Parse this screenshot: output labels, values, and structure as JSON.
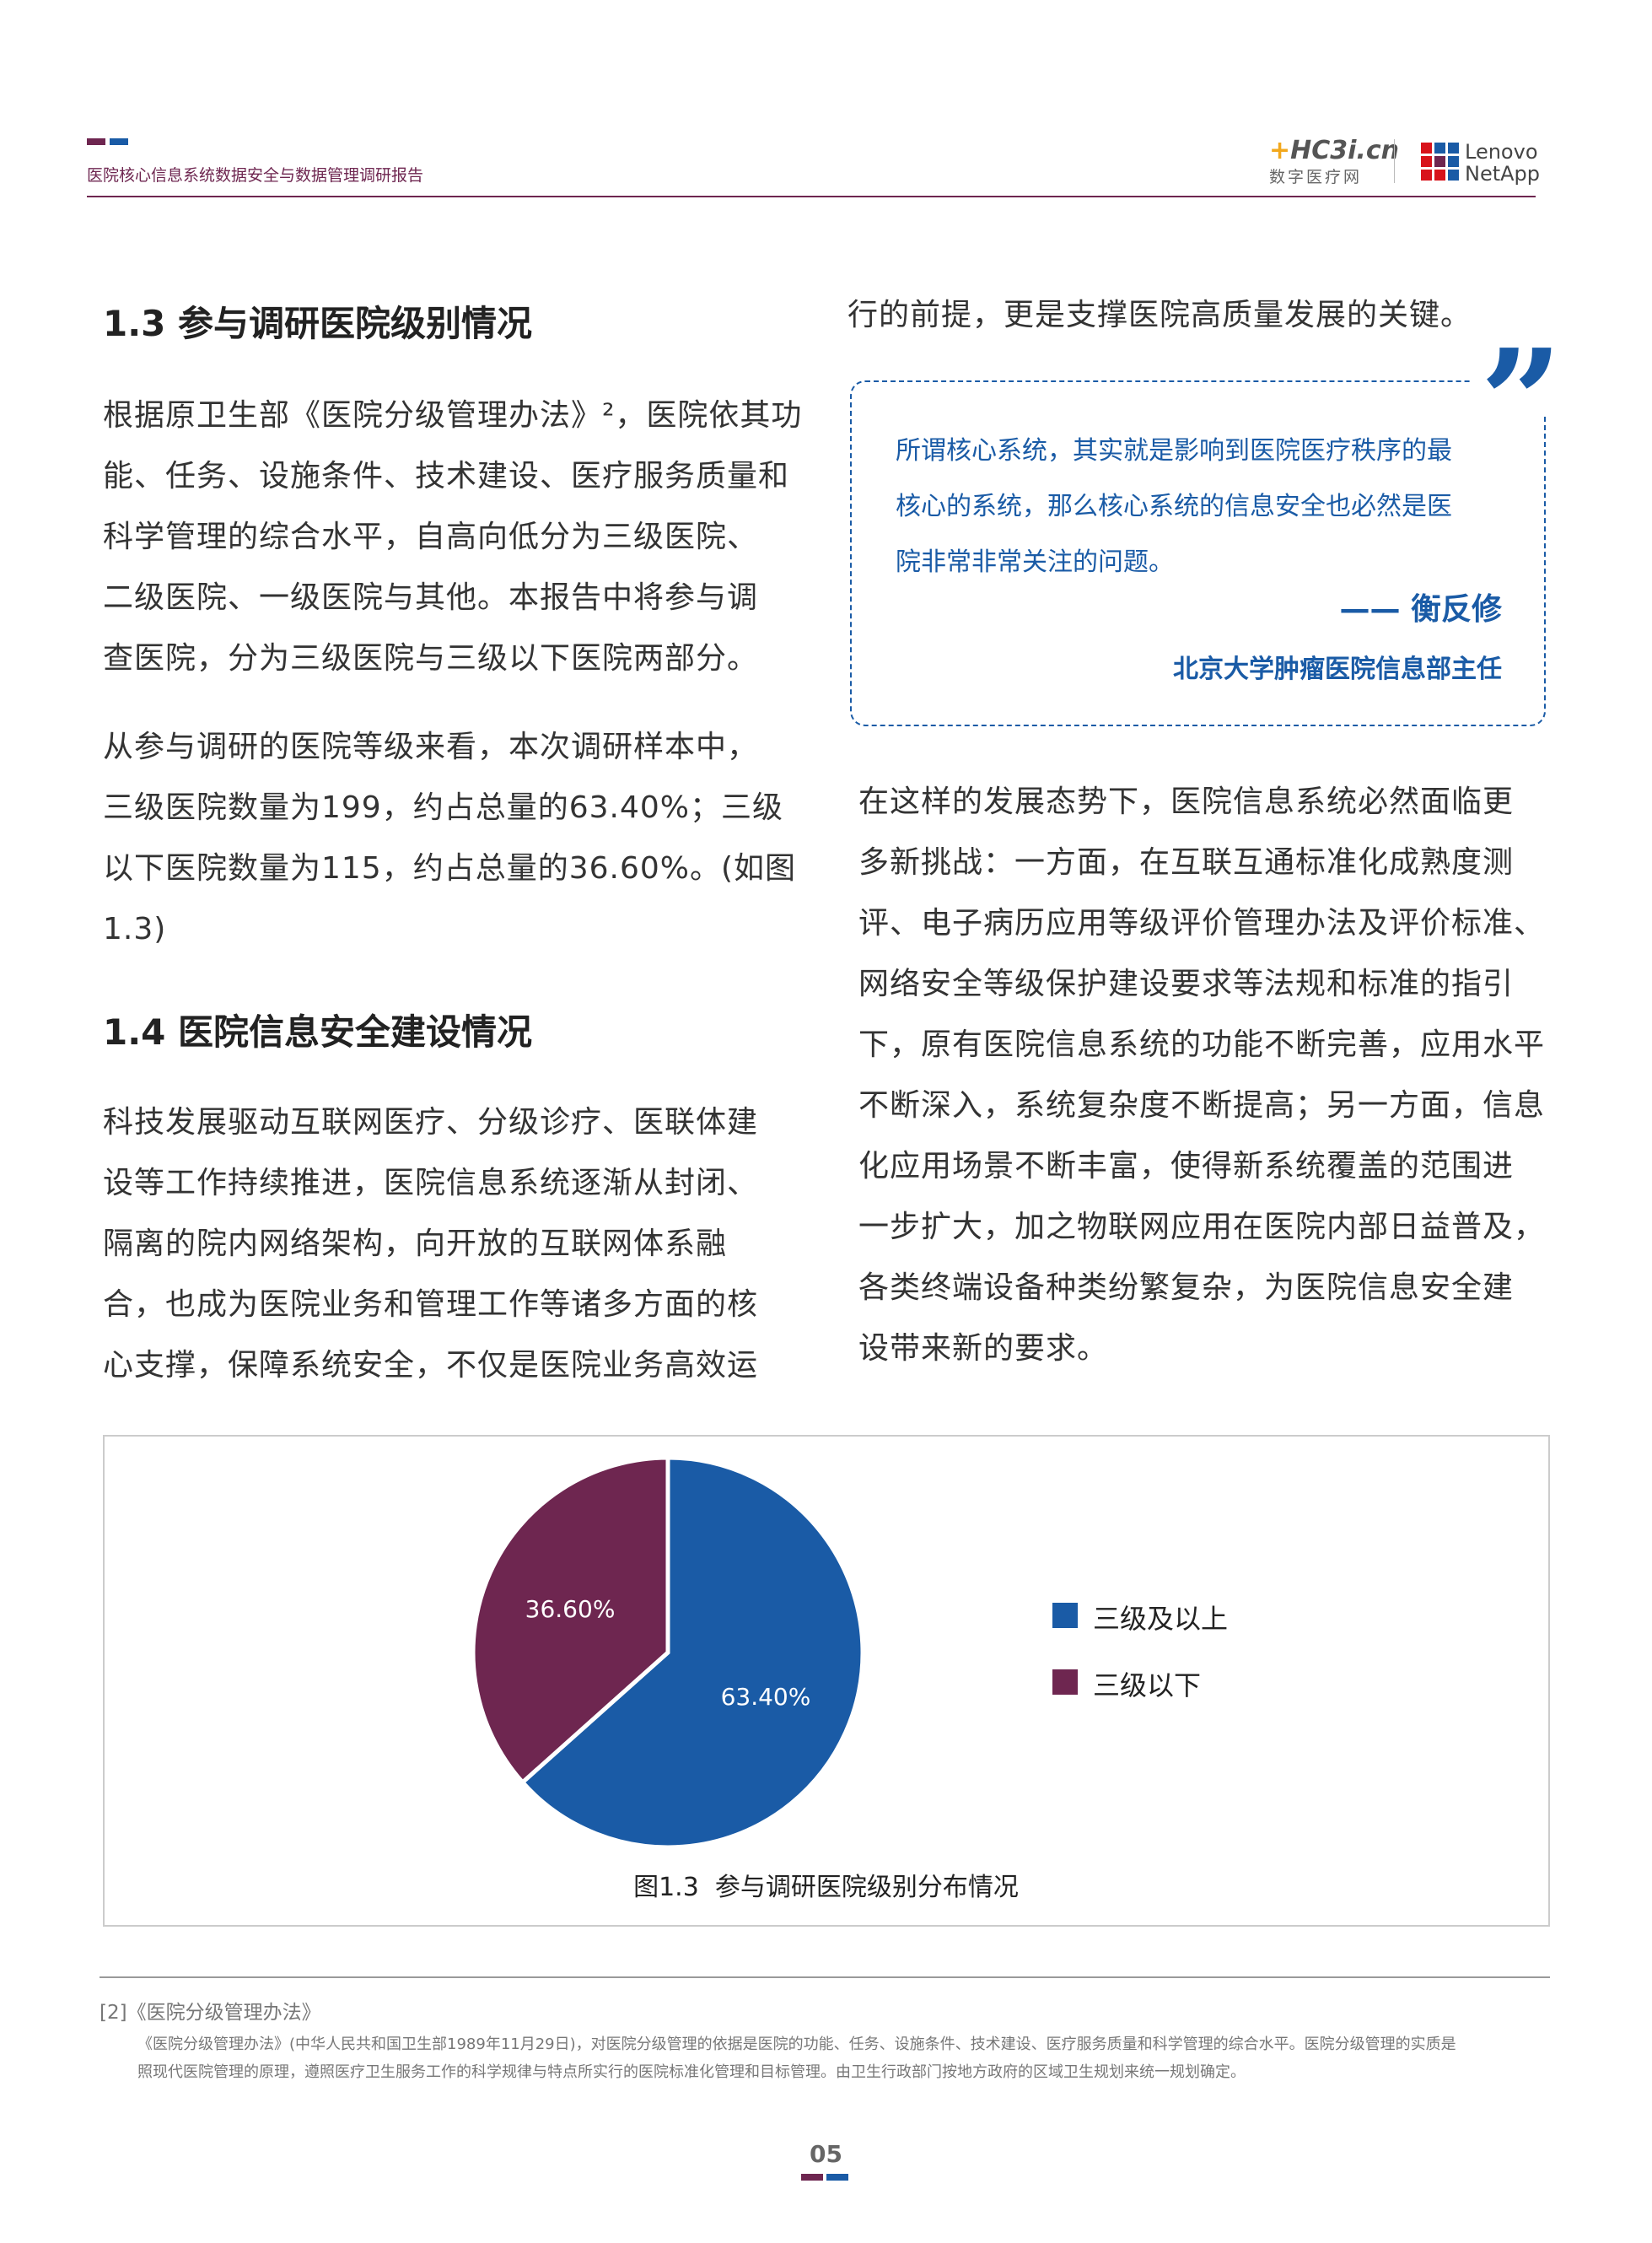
{
  "header": {
    "title": "医院核心信息系统数据安全与数据管理调研报告",
    "logo_hc3i": "HC3i.cn",
    "logo_hc3i_sub": "数字医疗网",
    "logo_lenovo": "Lenovo",
    "logo_netapp": "NetApp",
    "colors": {
      "maroon": "#6e2650",
      "blue": "#1a5ba6"
    }
  },
  "left": {
    "heading_1_3": "1.3 参与调研医院级别情况",
    "para1_lines": [
      "根据原卫生部《医院分级管理办法》²，医院依其功",
      "能、任务、设施条件、技术建设、医疗服务质量和",
      "科学管理的综合水平，自高向低分为三级医院、",
      "二级医院、一级医院与其他。本报告中将参与调",
      "查医院，分为三级医院与三级以下医院两部分。"
    ],
    "para2_lines": [
      "从参与调研的医院等级来看，本次调研样本中，",
      "三级医院数量为199，约占总量的63.40%；三级",
      "以下医院数量为115，约占总量的36.60%。(如图",
      "1.3)"
    ],
    "heading_1_4": "1.4 医院信息安全建设情况",
    "para3_lines": [
      "科技发展驱动互联网医疗、分级诊疗、医联体建",
      "设等工作持续推进，医院信息系统逐渐从封闭、",
      "隔离的院内网络架构，向开放的互联网体系融",
      "合，也成为医院业务和管理工作等诸多方面的核",
      "心支撑，保障系统安全，不仅是医院业务高效运"
    ]
  },
  "right": {
    "first_line": "行的前提，更是支撑医院高质量发展的关键。",
    "quote": {
      "lines": [
        "所谓核心系统，其实就是影响到医院医疗秩序的最",
        "核心的系统，那么核心系统的信息安全也必然是医",
        "院非常非常关注的问题。"
      ],
      "author": "—— 衡反修",
      "author_title": "北京大学肿瘤医院信息部主任"
    },
    "para_lines": [
      "在这样的发展态势下，医院信息系统必然面临更",
      "多新挑战：一方面，在互联互通标准化成熟度测",
      "评、电子病历应用等级评价管理办法及评价标准、",
      "网络安全等级保护建设要求等法规和标准的指引",
      "下，原有医院信息系统的功能不断完善，应用水平",
      "不断深入，系统复杂度不断提高；另一方面，信息",
      "化应用场景不断丰富，使得新系统覆盖的范围进",
      "一步扩大，加之物联网应用在医院内部日益普及，",
      "各类终端设备种类纷繁复杂，为医院信息安全建",
      "设带来新的要求。"
    ]
  },
  "chart_data": {
    "type": "pie",
    "title": "图1.3  参与调研医院级别分布情况",
    "categories": [
      "三级及以上",
      "三级以下"
    ],
    "values": [
      63.4,
      36.6
    ],
    "labels": [
      "63.40%",
      "36.60%"
    ],
    "colors": [
      "#1a5ba6",
      "#6e2650"
    ],
    "legend": "right"
  },
  "footnote": {
    "title": "[2]《医院分级管理办法》",
    "lines": [
      "《医院分级管理办法》(中华人民共和国卫生部1989年11月29日)，对医院分级管理的依据是医院的功能、任务、设施条件、技术建设、医疗服务质量和科学管理的综合水平。医院分级管理的实质是",
      "照现代医院管理的原理，遵照医疗卫生服务工作的科学规律与特点所实行的医院标准化管理和目标管理。由卫生行政部门按地方政府的区域卫生规划来统一规划确定。"
    ]
  },
  "page_number": "05"
}
